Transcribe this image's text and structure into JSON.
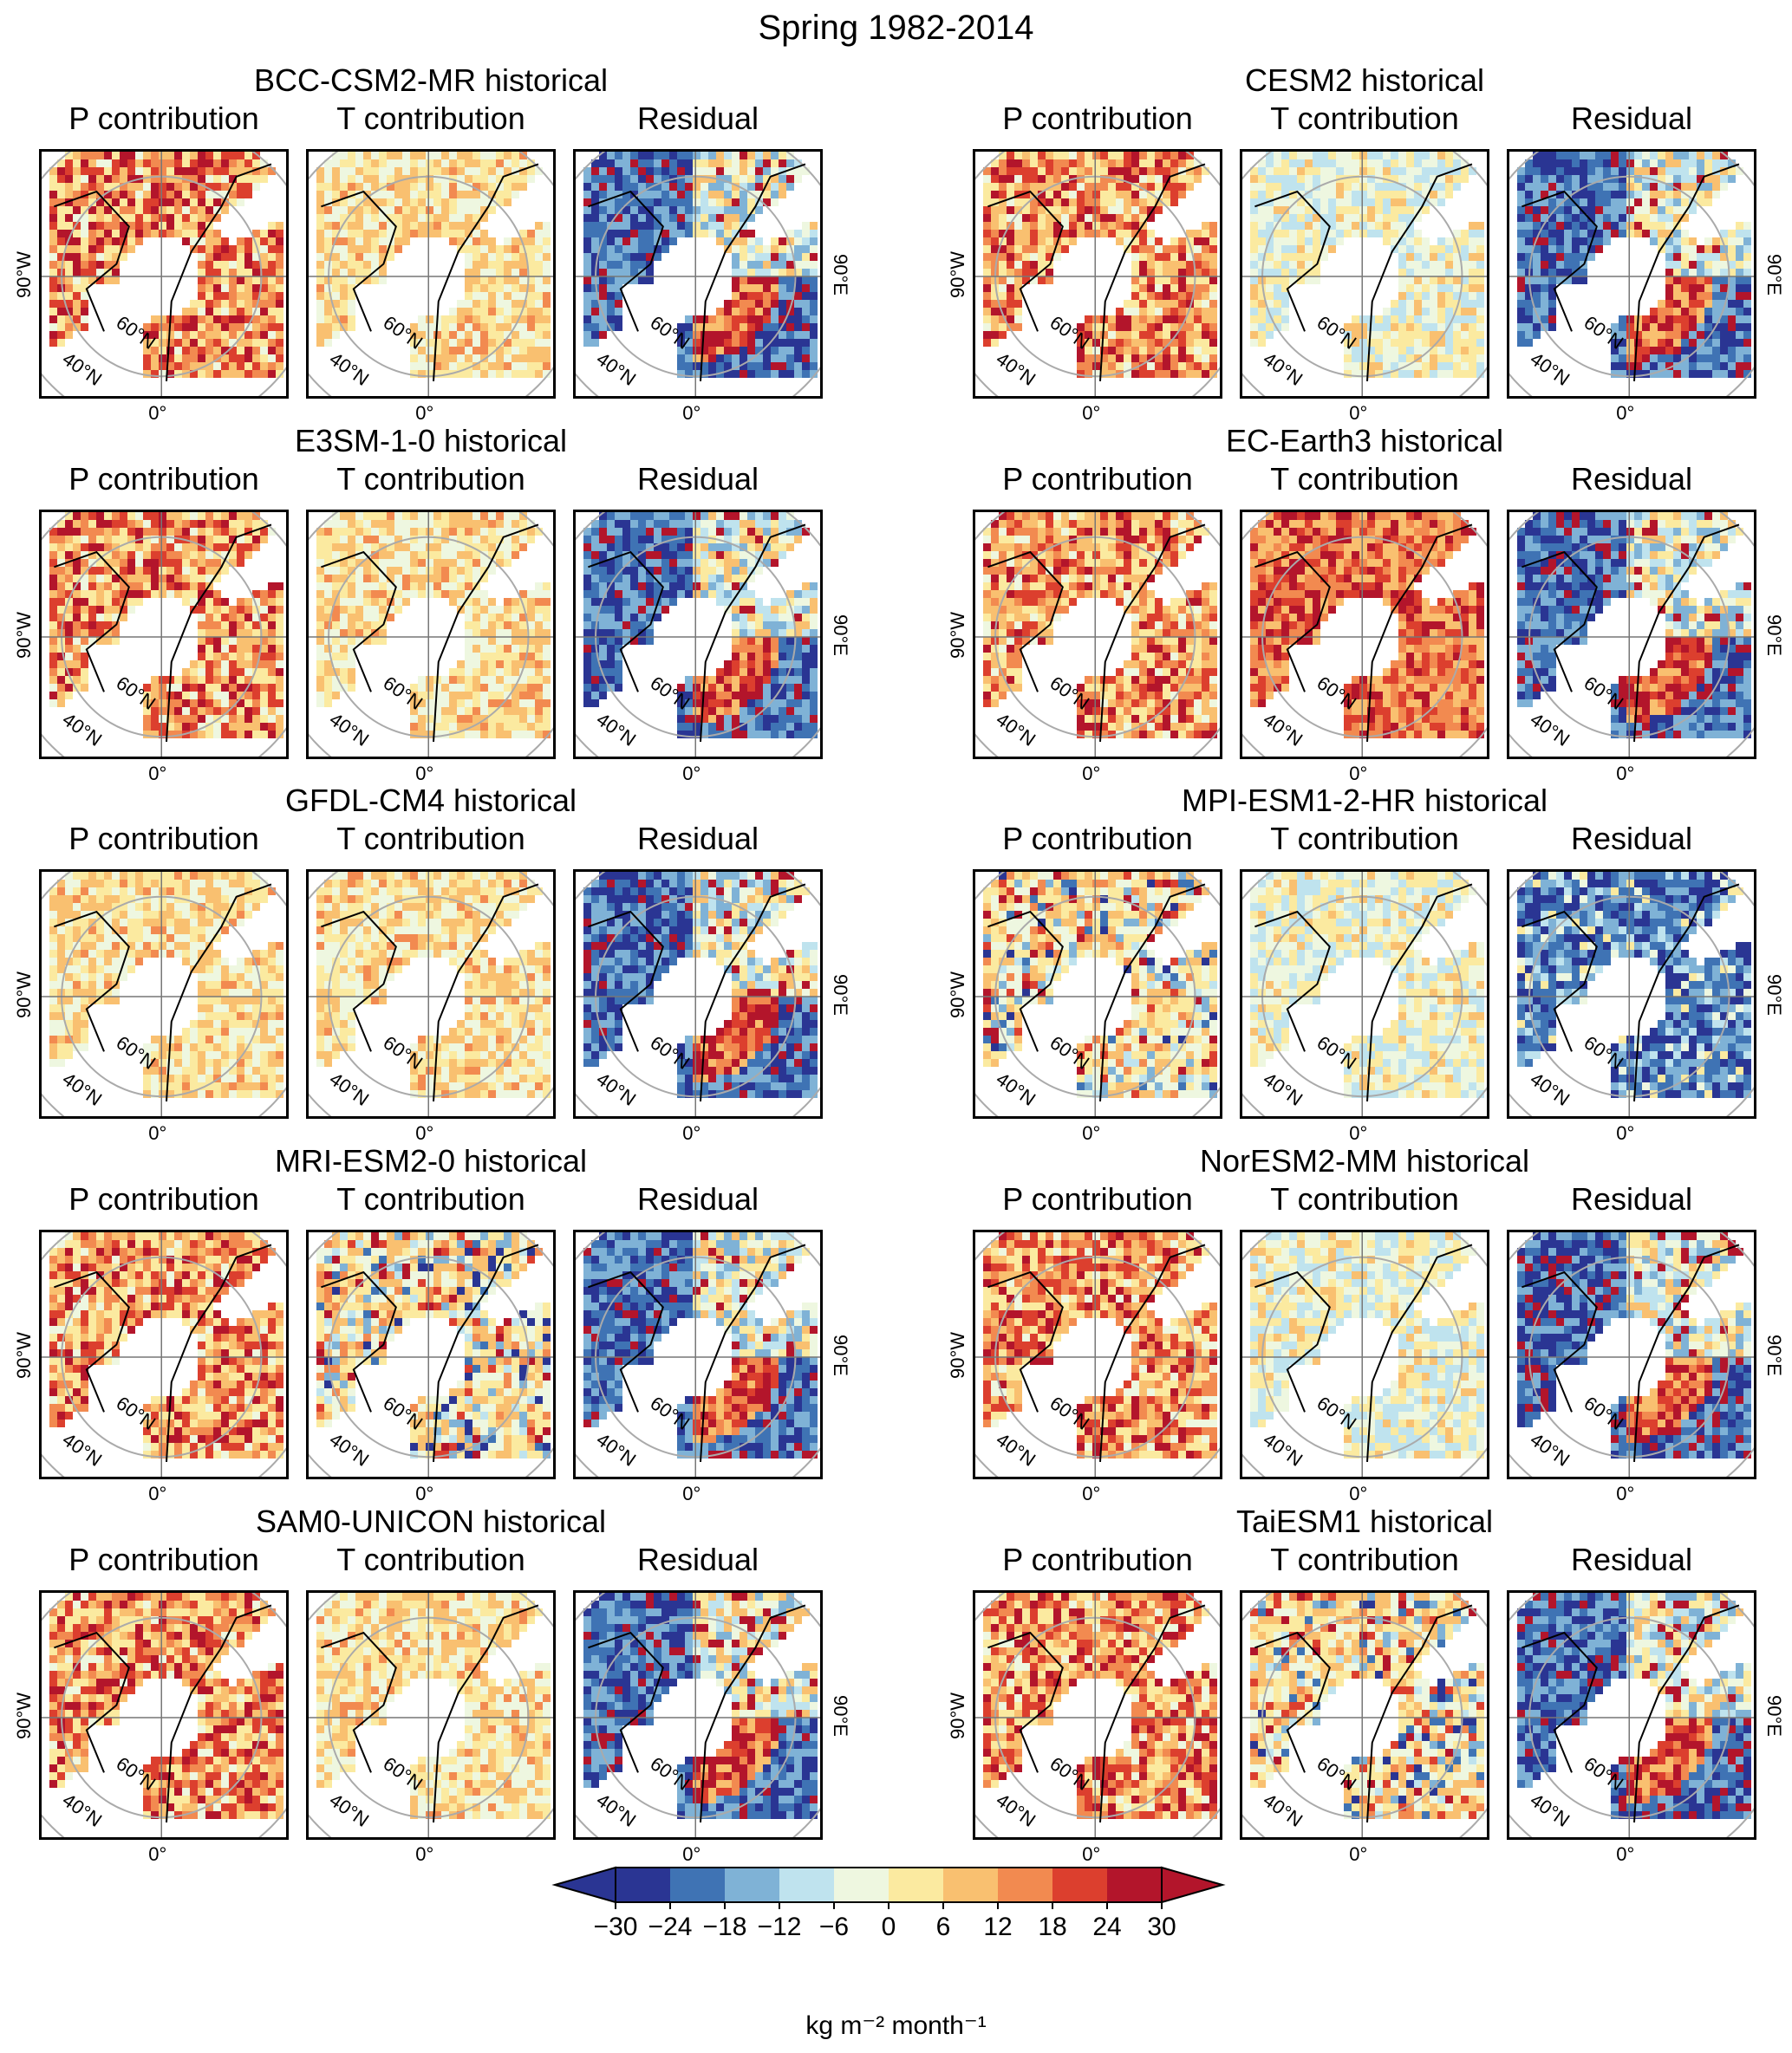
{
  "title": "Spring 1982-2014",
  "panel_titles": [
    "P contribution",
    "T contribution",
    "Residual"
  ],
  "map_labels": {
    "lon_west": "90°W",
    "lon_east": "90°E",
    "lon_zero": "0°",
    "lat_40": "40°N",
    "lat_60": "60°N"
  },
  "models": [
    {
      "name": "BCC-CSM2-MR historical",
      "pattern": {
        "P": "warm",
        "T": "light-warm",
        "R": "dipole"
      }
    },
    {
      "name": "CESM2 historical",
      "pattern": {
        "P": "warm",
        "T": "neutral",
        "R": "dipole"
      }
    },
    {
      "name": "E3SM-1-0 historical",
      "pattern": {
        "P": "warm",
        "T": "light-warm",
        "R": "dipole"
      }
    },
    {
      "name": "EC-Earth3 historical",
      "pattern": {
        "P": "warm",
        "T": "strong-warm",
        "R": "dipole"
      }
    },
    {
      "name": "GFDL-CM4 historical",
      "pattern": {
        "P": "light-warm",
        "T": "light-warm",
        "R": "dipole"
      }
    },
    {
      "name": "MPI-ESM1-2-HR historical",
      "pattern": {
        "P": "mixed",
        "T": "neutral",
        "R": "strong-cold"
      }
    },
    {
      "name": "MRI-ESM2-0 historical",
      "pattern": {
        "P": "warm",
        "T": "mixed",
        "R": "dipole"
      }
    },
    {
      "name": "NorESM2-MM historical",
      "pattern": {
        "P": "warm",
        "T": "neutral",
        "R": "dipole"
      }
    },
    {
      "name": "SAM0-UNICON historical",
      "pattern": {
        "P": "warm",
        "T": "light-warm",
        "R": "dipole"
      }
    },
    {
      "name": "TaiESM1 historical",
      "pattern": {
        "P": "warm",
        "T": "mixed",
        "R": "dipole"
      }
    }
  ],
  "chart_data": {
    "type": "heatmap",
    "title": "Spring 1982-2014",
    "projection": "north polar stereographic",
    "colorbar": {
      "label": "kg m⁻² month⁻¹",
      "ticks": [
        "−30",
        "−24",
        "−18",
        "−12",
        "−6",
        "0",
        "6",
        "12",
        "18",
        "24",
        "30"
      ],
      "boundaries": [
        -30,
        -24,
        -18,
        -12,
        -6,
        0,
        6,
        12,
        18,
        24,
        30
      ],
      "colors": [
        "#2a3593",
        "#3f73b4",
        "#7fb2d6",
        "#bfe3ee",
        "#eef7e0",
        "#fbeaa0",
        "#f9c070",
        "#f28a50",
        "#dc3f2e",
        "#b3152b"
      ],
      "extend": "both",
      "under_color": "#2a3593",
      "over_color": "#b3152b"
    }
  }
}
